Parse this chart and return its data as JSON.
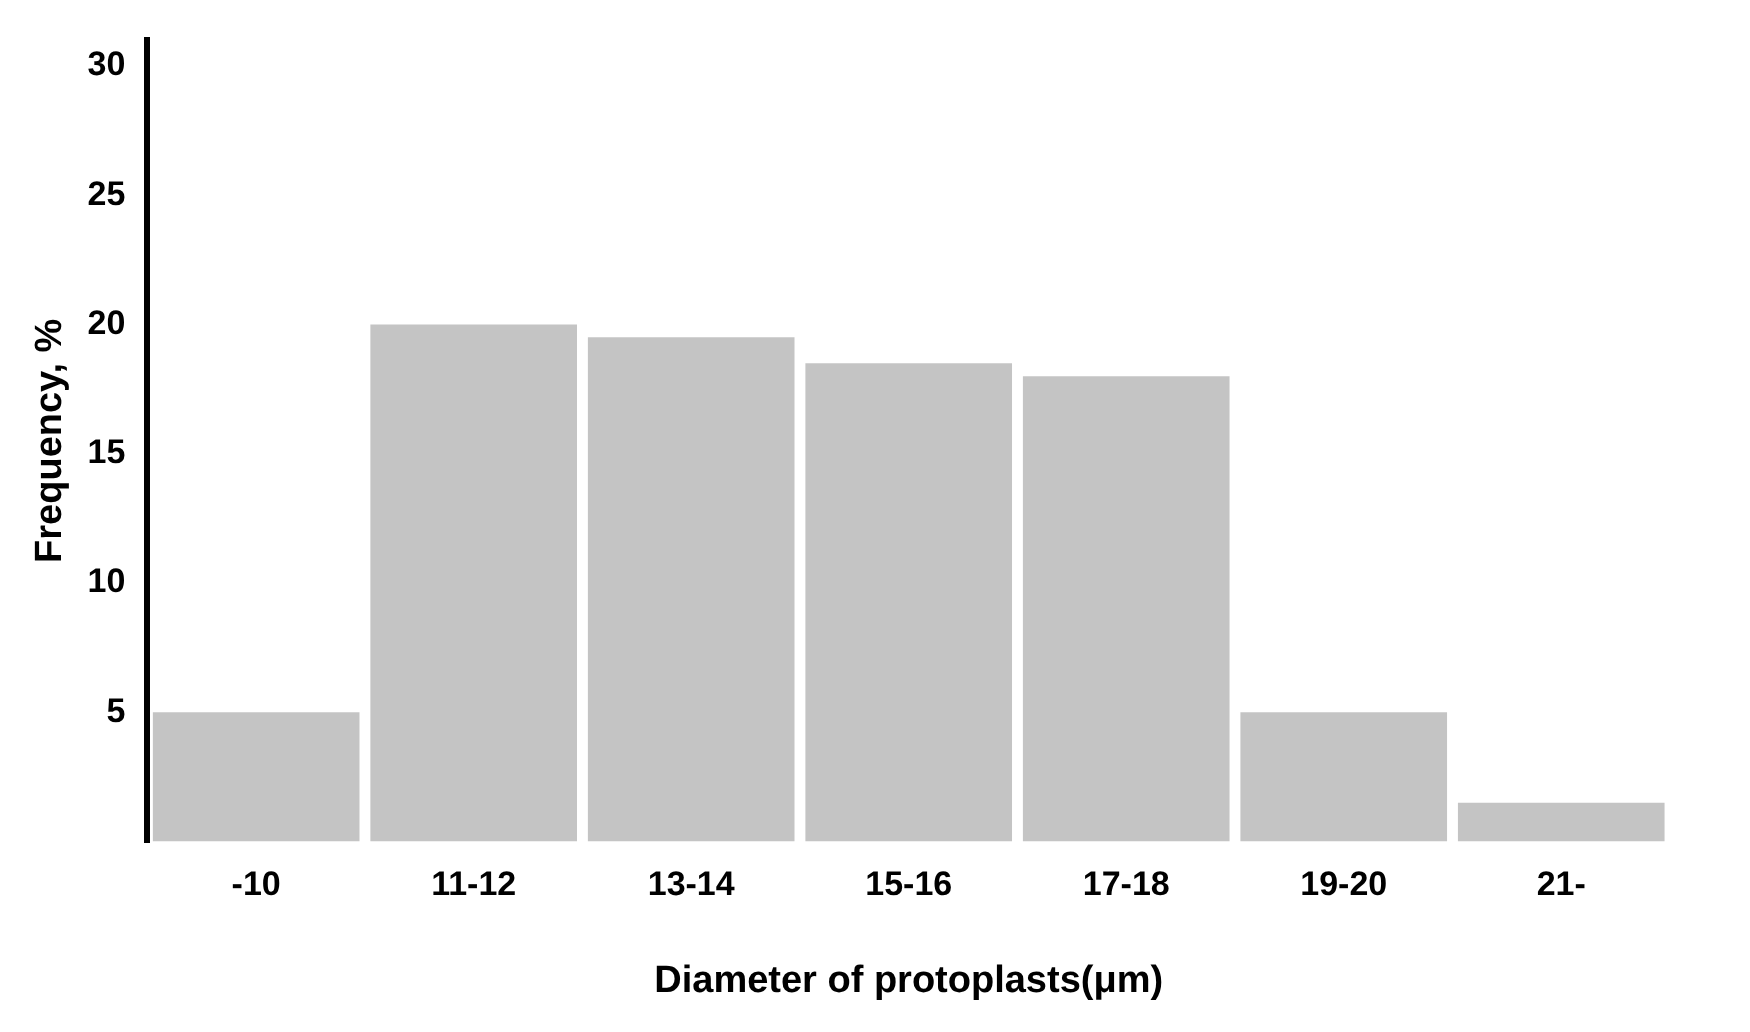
{
  "chart_data": {
    "type": "bar",
    "xlabel": "Diameter of protoplasts(μm)",
    "ylabel": "Frequency, %",
    "categories": [
      "-10",
      "11-12",
      "13-14",
      "15-16",
      "17-18",
      "19-20",
      "21-"
    ],
    "values": [
      5,
      20,
      19.5,
      18.5,
      18,
      5,
      1.5
    ],
    "color": "#c4c4c4",
    "ylim": [
      0,
      31
    ],
    "yticks": [
      5,
      10,
      15,
      20,
      25,
      30
    ],
    "grid": false,
    "legend": false
  }
}
